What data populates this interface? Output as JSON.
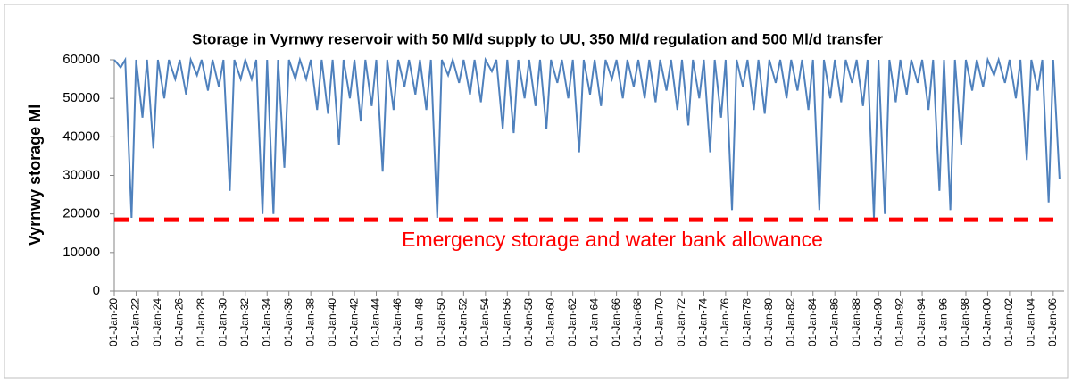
{
  "chart_data": {
    "type": "line",
    "title": "Storage in Vyrnwy reservoir with 50 Ml/d supply to UU, 350 Ml/d regulation and 500 Ml/d transfer",
    "y_label": "Vyrnwy storage Ml",
    "annotation": "Emergency storage and water bank allowance",
    "reference_line": {
      "value": 18500,
      "color": "#ff0000"
    },
    "x": [
      "01-Jan-20",
      "01-Aug-20",
      "01-Jan-21",
      "01-Aug-21",
      "01-Jan-22",
      "01-Aug-22",
      "01-Jan-23",
      "01-Aug-23",
      "01-Jan-24",
      "01-Aug-24",
      "01-Jan-25",
      "01-Aug-25",
      "01-Jan-26",
      "01-Aug-26",
      "01-Jan-27",
      "01-Aug-27",
      "01-Jan-28",
      "01-Aug-28",
      "01-Jan-29",
      "01-Aug-29",
      "01-Jan-30",
      "01-Aug-30",
      "01-Jan-31",
      "01-Aug-31",
      "01-Jan-32",
      "01-Aug-32",
      "01-Jan-33",
      "01-Aug-33",
      "01-Jan-34",
      "01-Aug-34",
      "01-Jan-35",
      "01-Aug-35",
      "01-Jan-36",
      "01-Aug-36",
      "01-Jan-37",
      "01-Aug-37",
      "01-Jan-38",
      "01-Aug-38",
      "01-Jan-39",
      "01-Aug-39",
      "01-Jan-40",
      "01-Aug-40",
      "01-Jan-41",
      "01-Aug-41",
      "01-Jan-42",
      "01-Aug-42",
      "01-Jan-43",
      "01-Aug-43",
      "01-Jan-44",
      "01-Aug-44",
      "01-Jan-45",
      "01-Aug-45",
      "01-Jan-46",
      "01-Aug-46",
      "01-Jan-47",
      "01-Aug-47",
      "01-Jan-48",
      "01-Aug-48",
      "01-Jan-49",
      "01-Aug-49",
      "01-Jan-50",
      "01-Aug-50",
      "01-Jan-51",
      "01-Aug-51",
      "01-Jan-52",
      "01-Aug-52",
      "01-Jan-53",
      "01-Aug-53",
      "01-Jan-54",
      "01-Aug-54",
      "01-Jan-55",
      "01-Aug-55",
      "01-Jan-56",
      "01-Aug-56",
      "01-Jan-57",
      "01-Aug-57",
      "01-Jan-58",
      "01-Aug-58",
      "01-Jan-59",
      "01-Aug-59",
      "01-Jan-60",
      "01-Aug-60",
      "01-Jan-61",
      "01-Aug-61",
      "01-Jan-62",
      "01-Aug-62",
      "01-Jan-63",
      "01-Aug-63",
      "01-Jan-64",
      "01-Aug-64",
      "01-Jan-65",
      "01-Aug-65",
      "01-Jan-66",
      "01-Aug-66",
      "01-Jan-67",
      "01-Aug-67",
      "01-Jan-68",
      "01-Aug-68",
      "01-Jan-69",
      "01-Aug-69",
      "01-Jan-70",
      "01-Aug-70",
      "01-Jan-71",
      "01-Aug-71",
      "01-Jan-72",
      "01-Aug-72",
      "01-Jan-73",
      "01-Aug-73",
      "01-Jan-74",
      "01-Aug-74",
      "01-Jan-75",
      "01-Aug-75",
      "01-Jan-76",
      "01-Aug-76",
      "01-Jan-77",
      "01-Aug-77",
      "01-Jan-78",
      "01-Aug-78",
      "01-Jan-79",
      "01-Aug-79",
      "01-Jan-80",
      "01-Aug-80",
      "01-Jan-81",
      "01-Aug-81",
      "01-Jan-82",
      "01-Aug-82",
      "01-Jan-83",
      "01-Aug-83",
      "01-Jan-84",
      "01-Aug-84",
      "01-Jan-85",
      "01-Aug-85",
      "01-Jan-86",
      "01-Aug-86",
      "01-Jan-87",
      "01-Aug-87",
      "01-Jan-88",
      "01-Aug-88",
      "01-Jan-89",
      "01-Aug-89",
      "01-Jan-90",
      "01-Aug-90",
      "01-Jan-91",
      "01-Aug-91",
      "01-Jan-92",
      "01-Aug-92",
      "01-Jan-93",
      "01-Aug-93",
      "01-Jan-94",
      "01-Aug-94",
      "01-Jan-95",
      "01-Aug-95",
      "01-Jan-96",
      "01-Aug-96",
      "01-Jan-97",
      "01-Aug-97",
      "01-Jan-98",
      "01-Aug-98",
      "01-Jan-99",
      "01-Aug-99",
      "01-Jan-00",
      "01-Aug-00",
      "01-Jan-01",
      "01-Aug-01",
      "01-Jan-02",
      "01-Aug-02",
      "01-Jan-03",
      "01-Aug-03",
      "01-Jan-04",
      "01-Aug-04",
      "01-Jan-05",
      "01-Aug-05",
      "01-Jan-06",
      "01-Aug-06"
    ],
    "series": [
      {
        "name": "Vyrnwy storage",
        "color": "#4f81bd",
        "values": [
          60000,
          58000,
          60000,
          19000,
          60000,
          45000,
          60000,
          37000,
          60000,
          50000,
          60000,
          55000,
          60000,
          51000,
          60000,
          56000,
          60000,
          52000,
          60000,
          53000,
          60000,
          26000,
          60000,
          55000,
          60000,
          55000,
          60000,
          20000,
          60000,
          20000,
          60000,
          32000,
          60000,
          55000,
          60000,
          55000,
          60000,
          47000,
          60000,
          46000,
          60000,
          38000,
          60000,
          50000,
          60000,
          44000,
          60000,
          48000,
          60000,
          31000,
          60000,
          47000,
          60000,
          53000,
          60000,
          51000,
          60000,
          47000,
          60000,
          19000,
          60000,
          56000,
          60000,
          54000,
          60000,
          51000,
          60000,
          49000,
          60000,
          57000,
          60000,
          42000,
          60000,
          41000,
          60000,
          50000,
          60000,
          48000,
          60000,
          42000,
          60000,
          54000,
          60000,
          50000,
          60000,
          36000,
          60000,
          51000,
          60000,
          48000,
          60000,
          55000,
          60000,
          50000,
          60000,
          53000,
          60000,
          50000,
          60000,
          49000,
          60000,
          52000,
          60000,
          47000,
          60000,
          43000,
          60000,
          50000,
          60000,
          36000,
          60000,
          45000,
          60000,
          21000,
          60000,
          53000,
          60000,
          47000,
          60000,
          46000,
          60000,
          54000,
          60000,
          50000,
          60000,
          52000,
          60000,
          47000,
          60000,
          21000,
          60000,
          50000,
          60000,
          49000,
          60000,
          54000,
          60000,
          48000,
          60000,
          19000,
          60000,
          20000,
          60000,
          49000,
          60000,
          51000,
          60000,
          54000,
          60000,
          47000,
          60000,
          26000,
          60000,
          21000,
          60000,
          38000,
          60000,
          52000,
          60000,
          53000,
          60000,
          56000,
          60000,
          54000,
          60000,
          50000,
          60000,
          34000,
          60000,
          52000,
          60000,
          23000,
          60000,
          29000
        ]
      }
    ],
    "xlim": [
      "01-Jan-20",
      "31-Dec-06"
    ],
    "xticks": [
      "01-Jan-20",
      "01-Jan-22",
      "01-Jan-24",
      "01-Jan-26",
      "01-Jan-28",
      "01-Jan-30",
      "01-Jan-32",
      "01-Jan-34",
      "01-Jan-36",
      "01-Jan-38",
      "01-Jan-40",
      "01-Jan-42",
      "01-Jan-44",
      "01-Jan-46",
      "01-Jan-48",
      "01-Jan-50",
      "01-Jan-52",
      "01-Jan-54",
      "01-Jan-56",
      "01-Jan-58",
      "01-Jan-60",
      "01-Jan-62",
      "01-Jan-64",
      "01-Jan-66",
      "01-Jan-68",
      "01-Jan-70",
      "01-Jan-72",
      "01-Jan-74",
      "01-Jan-76",
      "01-Jan-78",
      "01-Jan-80",
      "01-Jan-82",
      "01-Jan-84",
      "01-Jan-86",
      "01-Jan-88",
      "01-Jan-90",
      "01-Jan-92",
      "01-Jan-94",
      "01-Jan-96",
      "01-Jan-98",
      "01-Jan-00",
      "01-Jan-02",
      "01-Jan-04",
      "01-Jan-06"
    ],
    "ylim": [
      0,
      60000
    ],
    "yticks": [
      0,
      10000,
      20000,
      30000,
      40000,
      50000,
      60000
    ],
    "grid": false
  }
}
